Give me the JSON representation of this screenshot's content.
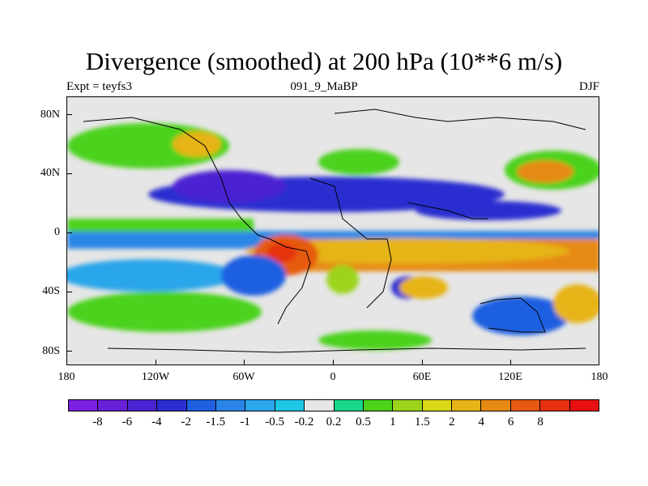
{
  "header": {
    "title": "Divergence (smoothed) at 200 hPa (10**6 m/s)",
    "experiment": "Expt = teyfs3",
    "run_id": "091_9_MaBP",
    "season": "DJF"
  },
  "map": {
    "background_color": "#e6e6e6",
    "lat_ticks": [
      "80N",
      "40N",
      "0",
      "40S",
      "80S"
    ],
    "lon_ticks": [
      "180",
      "120W",
      "60W",
      "0",
      "60E",
      "120E",
      "180"
    ]
  },
  "colorbar": {
    "colors": [
      "#7a20e0",
      "#6a1fd8",
      "#4b23d2",
      "#2b2fd0",
      "#1f5fe0",
      "#2a86e6",
      "#2aa6ea",
      "#1fc6e6",
      "#e6e6e6",
      "#1ad68a",
      "#4cd21a",
      "#9cd41c",
      "#d8d818",
      "#e6b418",
      "#e68a14",
      "#e65a10",
      "#e63010",
      "#e61010"
    ],
    "labels": [
      "-8",
      "-6",
      "-4",
      "-2",
      "-1.5",
      "-1",
      "-0.5",
      "-0.2",
      "0.2",
      "0.5",
      "1",
      "1.5",
      "2",
      "4",
      "6",
      "8"
    ]
  }
}
